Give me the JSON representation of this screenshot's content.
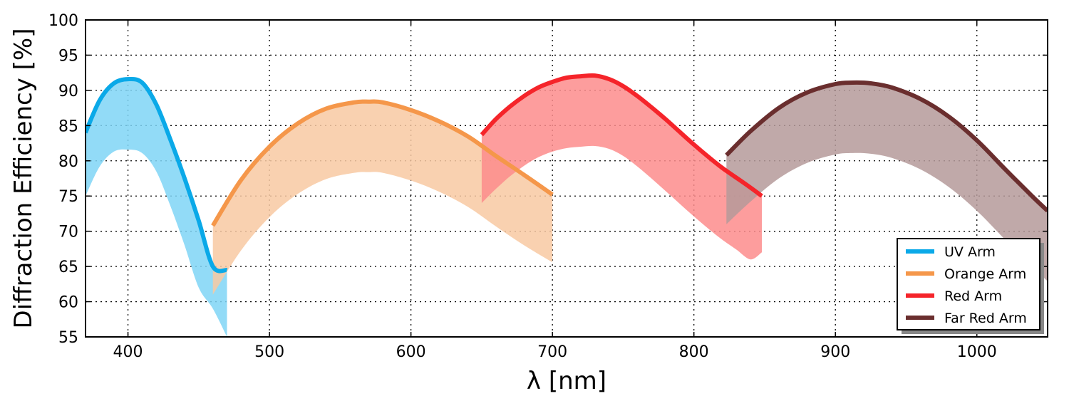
{
  "chart_data": {
    "type": "area",
    "title": "",
    "xlabel": "λ [nm]",
    "ylabel": "Diffraction Efficiency [%]",
    "xlim": [
      370,
      1050
    ],
    "ylim": [
      55,
      100
    ],
    "xticks": [
      400,
      500,
      600,
      700,
      800,
      900,
      1000
    ],
    "yticks": [
      55,
      60,
      65,
      70,
      75,
      80,
      85,
      90,
      95,
      100
    ],
    "grid": true,
    "legend_position": "bottom-right",
    "series": [
      {
        "name": "UV Arm",
        "color": "#0aa9e8",
        "fill_color": "#7fd5f6",
        "x": [
          370,
          380,
          390,
          400,
          410,
          420,
          430,
          440,
          450,
          460,
          470
        ],
        "upper": [
          84.0,
          88.6,
          91.0,
          91.6,
          91.1,
          88.0,
          83.0,
          77.5,
          71.5,
          65.0,
          64.5
        ],
        "lower": [
          75.0,
          79.2,
          81.3,
          81.6,
          81.1,
          78.5,
          73.6,
          68.0,
          62.0,
          59.0,
          55.0
        ]
      },
      {
        "name": "Orange Arm",
        "color": "#f5974a",
        "fill_color": "#f8c9a2",
        "x": [
          460,
          480,
          500,
          520,
          540,
          560,
          570,
          580,
          600,
          620,
          640,
          660,
          680,
          700
        ],
        "upper": [
          70.8,
          77.3,
          82.0,
          85.3,
          87.4,
          88.3,
          88.4,
          88.3,
          87.2,
          85.6,
          83.5,
          80.7,
          78.0,
          75.2
        ],
        "lower": [
          61.0,
          67.3,
          72.0,
          75.3,
          77.4,
          78.3,
          78.4,
          78.3,
          77.2,
          75.6,
          73.5,
          70.7,
          68.0,
          65.6
        ]
      },
      {
        "name": "Red Arm",
        "color": "#f5242a",
        "fill_color": "#fd8c8c",
        "x": [
          650,
          660,
          670,
          680,
          690,
          700,
          710,
          720,
          730,
          740,
          750,
          760,
          770,
          780,
          790,
          800,
          810,
          820,
          830,
          840,
          848
        ],
        "upper": [
          83.7,
          85.9,
          87.7,
          89.2,
          90.4,
          91.2,
          91.8,
          92.0,
          92.1,
          91.6,
          90.6,
          89.2,
          87.6,
          85.9,
          84.1,
          82.3,
          80.6,
          79.0,
          77.6,
          76.2,
          75.0
        ],
        "lower": [
          74.0,
          76.0,
          77.8,
          79.3,
          80.5,
          81.3,
          81.8,
          82.0,
          82.1,
          81.7,
          80.7,
          79.2,
          77.5,
          75.7,
          73.9,
          72.1,
          70.4,
          68.8,
          67.4,
          66.0,
          67.0
        ]
      },
      {
        "name": "Far Red Arm",
        "color": "#6a2e2e",
        "fill_color": "#b59a9a",
        "x": [
          823,
          840,
          860,
          880,
          900,
          912,
          925,
          940,
          960,
          980,
          1000,
          1020,
          1040,
          1050
        ],
        "upper": [
          80.8,
          84.2,
          87.5,
          89.7,
          90.9,
          91.1,
          91.0,
          90.4,
          88.8,
          86.3,
          82.9,
          78.8,
          74.8,
          72.9
        ],
        "lower": [
          71.0,
          74.2,
          77.5,
          79.7,
          80.9,
          81.1,
          81.0,
          80.4,
          78.8,
          76.3,
          72.9,
          68.8,
          64.8,
          62.9
        ]
      }
    ]
  }
}
